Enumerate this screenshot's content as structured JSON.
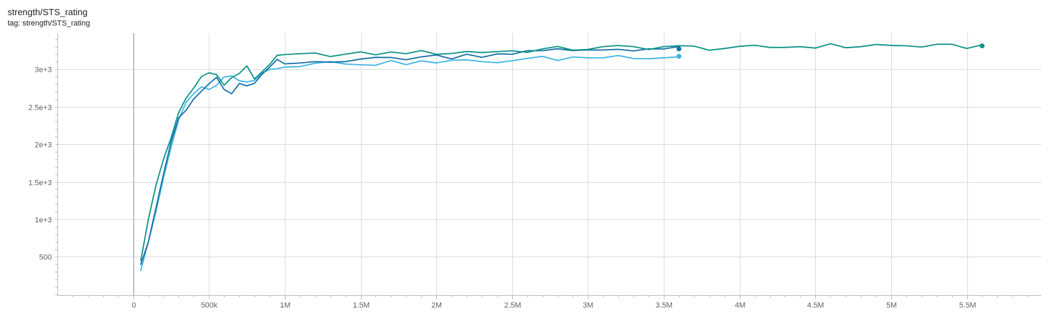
{
  "header": {
    "title": "strength/STS_rating",
    "tag": "tag: strength/STS_rating"
  },
  "chart_data": {
    "type": "line",
    "title": "strength/STS_rating",
    "subtitle": "tag: strength/STS_rating",
    "xlabel": "",
    "ylabel": "",
    "xlim": [
      -500000,
      5990000
    ],
    "ylim": [
      -10,
      3480
    ],
    "x_ticks": [
      {
        "value": 0,
        "label": "0"
      },
      {
        "value": 500000,
        "label": "500k"
      },
      {
        "value": 1000000,
        "label": "1M"
      },
      {
        "value": 1500000,
        "label": "1.5M"
      },
      {
        "value": 2000000,
        "label": "2M"
      },
      {
        "value": 2500000,
        "label": "2.5M"
      },
      {
        "value": 3000000,
        "label": "3M"
      },
      {
        "value": 3500000,
        "label": "3.5M"
      },
      {
        "value": 4000000,
        "label": "4M"
      },
      {
        "value": 4500000,
        "label": "4.5M"
      },
      {
        "value": 5000000,
        "label": "5M"
      },
      {
        "value": 5500000,
        "label": "5.5M"
      }
    ],
    "y_ticks": [
      {
        "value": 500,
        "label": "500"
      },
      {
        "value": 1000,
        "label": "1e+3"
      },
      {
        "value": 1500,
        "label": "1.5e+3"
      },
      {
        "value": 2000,
        "label": "2e+3"
      },
      {
        "value": 2500,
        "label": "2.5e+3"
      },
      {
        "value": 3000,
        "label": "3e+3"
      }
    ],
    "grid": true,
    "colors": [
      "#0b9388",
      "#1670a7",
      "#3db5e6"
    ],
    "series": [
      {
        "color": "#0b9388",
        "x": [
          50000,
          100000,
          150000,
          200000,
          250000,
          300000,
          350000,
          400000,
          450000,
          500000,
          550000,
          600000,
          650000,
          700000,
          750000,
          800000,
          850000,
          900000,
          950000,
          1000000,
          1100000,
          1200000,
          1300000,
          1400000,
          1500000,
          1600000,
          1700000,
          1800000,
          1900000,
          2000000,
          2100000,
          2200000,
          2300000,
          2400000,
          2500000,
          2600000,
          2700000,
          2800000,
          2900000,
          3000000,
          3100000,
          3200000,
          3300000,
          3400000,
          3500000,
          3600000,
          3700000,
          3800000,
          3900000,
          4000000,
          4100000,
          4200000,
          4300000,
          4400000,
          4500000,
          4600000,
          4700000,
          4800000,
          4900000,
          5000000,
          5100000,
          5200000,
          5300000,
          5400000,
          5500000,
          5600000
        ],
        "y": [
          450,
          1000,
          1450,
          1800,
          2100,
          2400,
          2600,
          2750,
          2900,
          2950,
          2960,
          2780,
          2880,
          2950,
          3020,
          2880,
          2970,
          3080,
          3150,
          3180,
          3180,
          3190,
          3200,
          3190,
          3200,
          3210,
          3210,
          3230,
          3220,
          3220,
          3220,
          3230,
          3230,
          3240,
          3240,
          3250,
          3260,
          3270,
          3270,
          3280,
          3280,
          3290,
          3290,
          3290,
          3300,
          3290,
          3290,
          3280,
          3280,
          3270,
          3290,
          3290,
          3300,
          3300,
          3310,
          3310,
          3300,
          3310,
          3320,
          3310,
          3310,
          3310,
          3300,
          3300,
          3300,
          3310
        ]
      },
      {
        "color": "#1670a7",
        "x": [
          50000,
          100000,
          150000,
          200000,
          250000,
          300000,
          350000,
          400000,
          450000,
          500000,
          550000,
          600000,
          650000,
          700000,
          750000,
          800000,
          850000,
          900000,
          950000,
          1000000,
          1100000,
          1200000,
          1300000,
          1400000,
          1500000,
          1600000,
          1700000,
          1800000,
          1900000,
          2000000,
          2100000,
          2200000,
          2300000,
          2400000,
          2500000,
          2600000,
          2700000,
          2800000,
          2900000,
          3000000,
          3100000,
          3200000,
          3300000,
          3400000,
          3500000,
          3600000
        ],
        "y": [
          400,
          700,
          1150,
          1600,
          2000,
          2350,
          2450,
          2600,
          2700,
          2800,
          2900,
          2700,
          2650,
          2830,
          2760,
          2800,
          2900,
          3030,
          3100,
          3070,
          3080,
          3100,
          3120,
          3130,
          3140,
          3130,
          3150,
          3150,
          3160,
          3170,
          3170,
          3190,
          3190,
          3210,
          3220,
          3230,
          3230,
          3250,
          3250,
          3260,
          3260,
          3270,
          3270,
          3270,
          3270,
          3270
        ]
      },
      {
        "color": "#3db5e6",
        "x": [
          50000,
          100000,
          150000,
          200000,
          250000,
          300000,
          350000,
          400000,
          450000,
          500000,
          550000,
          600000,
          650000,
          700000,
          750000,
          800000,
          850000,
          900000,
          950000,
          1000000,
          1100000,
          1200000,
          1300000,
          1400000,
          1500000,
          1600000,
          1700000,
          1800000,
          1900000,
          2000000,
          2100000,
          2200000,
          2300000,
          2400000,
          2500000,
          2600000,
          2700000,
          2800000,
          2900000,
          3000000,
          3100000,
          3200000,
          3300000,
          3400000,
          3500000,
          3600000
        ],
        "y": [
          320,
          700,
          1100,
          1550,
          1950,
          2300,
          2550,
          2700,
          2740,
          2760,
          2800,
          2880,
          2900,
          2870,
          2860,
          2870,
          2950,
          3000,
          3030,
          3060,
          3060,
          3070,
          3080,
          3090,
          3080,
          3080,
          3080,
          3090,
          3090,
          3090,
          3100,
          3100,
          3100,
          3110,
          3120,
          3130,
          3140,
          3140,
          3150,
          3160,
          3160,
          3170,
          3170,
          3170,
          3170,
          3170
        ]
      }
    ]
  }
}
